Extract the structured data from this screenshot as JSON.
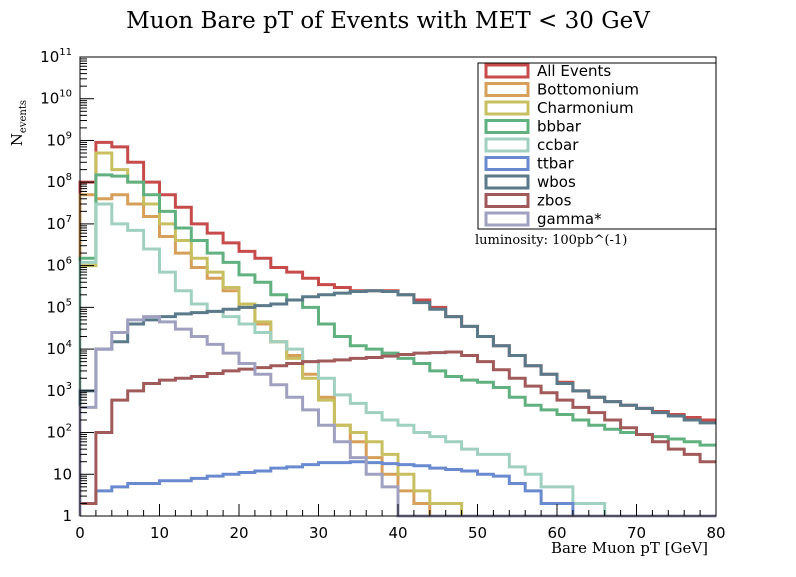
{
  "chart_data": {
    "type": "line",
    "title": "Muon Bare pT of Events with MET < 30 GeV",
    "xlabel": "Bare Muon pT [GeV]",
    "ylabel": "N_events",
    "ylabel_main": "N",
    "ylabel_sub": "events",
    "xlim": [
      0,
      80
    ],
    "ylim": [
      1,
      100000000000
    ],
    "y_scale": "log",
    "grid": false,
    "legend_position": "top-right",
    "annotation": "luminosity: 100pb^(-1)",
    "bin_edges": [
      0,
      2,
      4,
      6,
      8,
      10,
      12,
      14,
      16,
      18,
      20,
      22,
      24,
      26,
      28,
      30,
      32,
      34,
      36,
      38,
      40,
      42,
      44,
      46,
      48,
      50,
      52,
      54,
      56,
      58,
      60,
      62,
      64,
      66,
      68,
      70,
      72,
      74,
      76,
      78,
      80
    ],
    "x_ticks": [
      0,
      10,
      20,
      30,
      40,
      50,
      60,
      70,
      80
    ],
    "y_ticks": [
      {
        "value": 1,
        "base": "1",
        "exp": ""
      },
      {
        "value": 10,
        "base": "10",
        "exp": ""
      },
      {
        "value": 100,
        "base": "10",
        "exp": "2"
      },
      {
        "value": 1000,
        "base": "10",
        "exp": "3"
      },
      {
        "value": 10000,
        "base": "10",
        "exp": "4"
      },
      {
        "value": 100000,
        "base": "10",
        "exp": "5"
      },
      {
        "value": 1000000,
        "base": "10",
        "exp": "6"
      },
      {
        "value": 10000000,
        "base": "10",
        "exp": "7"
      },
      {
        "value": 100000000,
        "base": "10",
        "exp": "8"
      },
      {
        "value": 1000000000,
        "base": "10",
        "exp": "9"
      },
      {
        "value": 10000000000,
        "base": "10",
        "exp": "10"
      },
      {
        "value": 100000000000,
        "base": "10",
        "exp": "11"
      }
    ],
    "series": [
      {
        "name": "All Events",
        "color": "#c84b4b",
        "values": [
          100000000,
          900000000,
          700000000,
          300000000,
          100000000,
          50000000,
          25000000,
          10000000,
          6000000,
          3500000,
          2200000,
          1500000,
          900000,
          700000,
          500000,
          350000,
          300000,
          250000,
          250000,
          250000,
          200000,
          150000,
          100000,
          60000,
          35000,
          20000,
          12000,
          7000,
          4000,
          2500,
          1600,
          1000,
          700,
          550,
          450,
          380,
          320,
          270,
          230,
          200
        ]
      },
      {
        "name": "Bottomonium",
        "color": "#d6a05a",
        "values": [
          50000000,
          40000000,
          50000000,
          30000000,
          15000000,
          5000000,
          2000000,
          900000,
          500000,
          250000,
          100000,
          40000,
          15000,
          7000,
          2500,
          700,
          150,
          60,
          25,
          10,
          4,
          2,
          1,
          1,
          1,
          0,
          0,
          0,
          0,
          0,
          0,
          0,
          0,
          0,
          0,
          0,
          0,
          0,
          0,
          0
        ]
      },
      {
        "name": "Charmonium",
        "color": "#c8c060",
        "values": [
          1000000,
          500000000,
          200000000,
          100000000,
          30000000,
          10000000,
          4000000,
          1500000,
          700000,
          300000,
          120000,
          45000,
          15000,
          6000,
          2000,
          600,
          150,
          100,
          60,
          30,
          10,
          4,
          2,
          2,
          1,
          0,
          0,
          0,
          0,
          0,
          0,
          0,
          0,
          0,
          0,
          0,
          0,
          0,
          0,
          0
        ]
      },
      {
        "name": "bbbar",
        "color": "#60b080",
        "values": [
          1500000,
          150000000,
          140000000,
          100000000,
          50000000,
          20000000,
          8000000,
          4000000,
          2000000,
          1200000,
          600000,
          400000,
          200000,
          150000,
          100000,
          40000,
          20000,
          12000,
          10000,
          8000,
          6000,
          4500,
          3000,
          2200,
          1800,
          1600,
          1200,
          700,
          450,
          350,
          270,
          200,
          150,
          120,
          100,
          90,
          80,
          70,
          60,
          50
        ]
      },
      {
        "name": "ccbar",
        "color": "#a0d0c0",
        "values": [
          1200000,
          30000000,
          10000000,
          7000000,
          2500000,
          700000,
          250000,
          120000,
          80000,
          60000,
          40000,
          25000,
          15000,
          10000,
          5000,
          2000,
          800,
          500,
          300,
          200,
          150,
          100,
          80,
          60,
          40,
          30,
          30,
          15,
          10,
          5,
          5,
          2,
          2,
          1,
          1,
          0,
          0,
          0,
          0,
          0
        ]
      },
      {
        "name": "ttbar",
        "color": "#6a8ad0",
        "values": [
          2,
          4,
          5,
          6,
          6,
          7,
          7,
          8,
          9,
          10,
          11,
          12,
          14,
          15,
          17,
          19,
          19,
          20,
          19,
          18,
          17,
          16,
          14,
          13,
          12,
          10,
          9,
          6,
          4,
          2,
          2,
          1,
          1,
          1,
          1,
          1,
          1,
          0,
          0,
          0
        ]
      },
      {
        "name": "wbos",
        "color": "#5a7a8a",
        "values": [
          1000,
          10000,
          15000,
          40000,
          50000,
          60000,
          70000,
          75000,
          80000,
          90000,
          100000,
          110000,
          120000,
          150000,
          180000,
          200000,
          220000,
          240000,
          250000,
          240000,
          200000,
          130000,
          90000,
          60000,
          35000,
          20000,
          12000,
          7000,
          4000,
          2500,
          1500,
          1000,
          700,
          550,
          450,
          380,
          300,
          250,
          200,
          170
        ]
      },
      {
        "name": "zbos",
        "color": "#a05a5a",
        "values": [
          2,
          100,
          600,
          1000,
          1500,
          1800,
          2000,
          2200,
          2600,
          3000,
          3300,
          3600,
          4000,
          4500,
          5000,
          5200,
          5500,
          6000,
          6300,
          6800,
          7400,
          8000,
          8200,
          8500,
          7000,
          5000,
          3200,
          2000,
          1300,
          900,
          600,
          400,
          300,
          200,
          130,
          90,
          60,
          40,
          30,
          20
        ]
      },
      {
        "name": "gamma*",
        "color": "#a0a0c0",
        "values": [
          400,
          10000,
          25000,
          50000,
          60000,
          45000,
          30000,
          20000,
          13000,
          8000,
          4500,
          2500,
          1400,
          700,
          350,
          150,
          60,
          25,
          10,
          5,
          1,
          0,
          0,
          0,
          0,
          0,
          0,
          0,
          0,
          0,
          0,
          0,
          0,
          0,
          0,
          0,
          0,
          0,
          0,
          0
        ]
      }
    ]
  }
}
